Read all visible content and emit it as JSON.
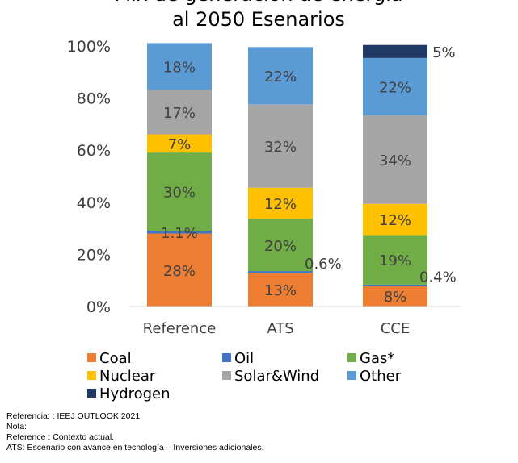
{
  "chart_data": {
    "type": "bar",
    "stacked": true,
    "title_lines": [
      "Mix de generación de energía",
      "al 2050 Esenarios"
    ],
    "categories": [
      "Reference",
      "ATS",
      "CCE"
    ],
    "ylim": [
      0,
      100
    ],
    "y_ticks": [
      "0%",
      "20%",
      "40%",
      "60%",
      "80%",
      "100%"
    ],
    "grid": false,
    "legend_position": "bottom",
    "series": [
      {
        "name": "Coal",
        "color": "#ed7d31",
        "values": [
          28,
          13,
          8
        ],
        "labels": [
          "28%",
          "13%",
          "8%"
        ]
      },
      {
        "name": "Oil",
        "color": "#4472c4",
        "values": [
          1.1,
          0.6,
          0.4
        ],
        "labels": [
          "1.1%",
          "0.6%",
          "0.4%"
        ]
      },
      {
        "name": "Gas*",
        "color": "#70ad47",
        "values": [
          30,
          20,
          19
        ],
        "labels": [
          "30%",
          "20%",
          "19%"
        ]
      },
      {
        "name": "Nuclear",
        "color": "#ffc000",
        "values": [
          7,
          12,
          12
        ],
        "labels": [
          "7%",
          "12%",
          "12%"
        ]
      },
      {
        "name": "Solar&Wind",
        "color": "#a5a5a5",
        "values": [
          17,
          32,
          34
        ],
        "labels": [
          "17%",
          "32%",
          "34%"
        ]
      },
      {
        "name": "Other",
        "color": "#5b9bd5",
        "values": [
          18,
          22,
          22
        ],
        "labels": [
          "18%",
          "22%",
          "22%"
        ]
      },
      {
        "name": "Hydrogen",
        "color": "#1f3864",
        "values": [
          0,
          0,
          5
        ],
        "labels": [
          "",
          "",
          "5%"
        ]
      }
    ]
  },
  "notes": {
    "source": "Referencia: : IEEJ OUTLOOK 2021",
    "note_label": "Nota:",
    "reference": "Reference : Contexto actual.",
    "ats": "ATS: Escenario con avance en tecnología – Inversiones adicionales."
  }
}
